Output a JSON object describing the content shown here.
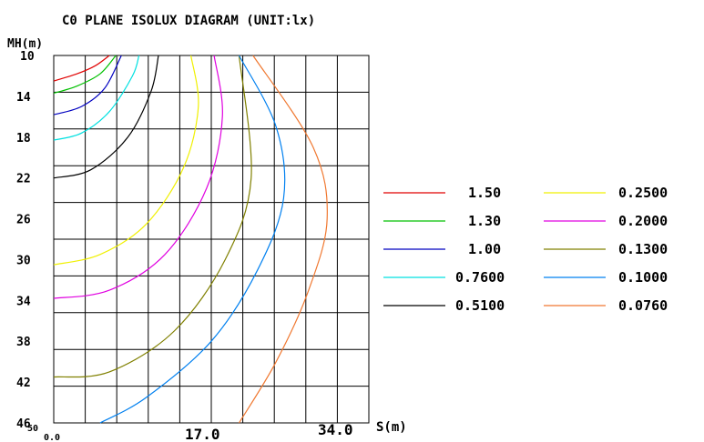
{
  "chart_data": {
    "type": "line",
    "title": "C0 PLANE ISOLUX DIAGRAM (UNIT:lx)",
    "ylabel": "MH(m)",
    "xlabel": "S(m)",
    "xlim": [
      0,
      34.0
    ],
    "ylim": [
      10,
      46
    ],
    "y_inverted": true,
    "grid": true,
    "x_ticks": [
      "0.0",
      "17.0",
      "34.0"
    ],
    "y_ticks": [
      "10",
      "14",
      "18",
      "22",
      "26",
      "30",
      "34",
      "38",
      "42",
      "46"
    ],
    "y_bottom_extra": "50",
    "legend_position": "right",
    "series": [
      {
        "name": "1.50",
        "color": "#e00000",
        "x": [
          0,
          2.5,
          4.5,
          6.0
        ],
        "y": [
          12.5,
          11.8,
          11.0,
          10.0
        ]
      },
      {
        "name": "1.30",
        "color": "#00c000",
        "x": [
          0,
          2.5,
          5.0,
          6.7
        ],
        "y": [
          13.7,
          13.0,
          11.8,
          10.0
        ]
      },
      {
        "name": "1.00",
        "color": "#0000c0",
        "x": [
          0,
          3.0,
          5.5,
          7.3
        ],
        "y": [
          15.8,
          15.0,
          13.2,
          10.0
        ]
      },
      {
        "name": "0.7600",
        "color": "#00e0e0",
        "x": [
          0,
          3.0,
          6.0,
          8.5,
          9.2
        ],
        "y": [
          18.3,
          17.6,
          15.5,
          12.0,
          10.0
        ]
      },
      {
        "name": "0.5100",
        "color": "#000000",
        "x": [
          0,
          4.0,
          8.0,
          10.5,
          11.3
        ],
        "y": [
          22.0,
          21.2,
          18.0,
          13.5,
          10.0
        ]
      },
      {
        "name": "0.2500",
        "color": "#f0f000",
        "x": [
          0,
          5.0,
          10.0,
          14.0,
          15.6,
          14.8
        ],
        "y": [
          30.5,
          29.5,
          26.5,
          21.0,
          15.0,
          10.0
        ]
      },
      {
        "name": "0.2000",
        "color": "#e000e0",
        "x": [
          0,
          6.0,
          12.0,
          16.5,
          18.2,
          17.3
        ],
        "y": [
          33.8,
          33.0,
          29.5,
          23.0,
          16.0,
          10.0
        ]
      },
      {
        "name": "0.1300",
        "color": "#808000",
        "x": [
          0,
          6.0,
          13.0,
          18.5,
          21.3,
          20.0
        ],
        "y": [
          41.5,
          41.0,
          37.0,
          30.0,
          22.0,
          10.0
        ]
      },
      {
        "name": "0.1000",
        "color": "#0080f0",
        "x": [
          5.0,
          10.0,
          17.0,
          22.0,
          24.8,
          24.0,
          20.0
        ],
        "y": [
          46.0,
          43.5,
          38.0,
          31.0,
          24.0,
          17.0,
          10.0
        ]
      },
      {
        "name": "0.0760",
        "color": "#f07830",
        "x": [
          20.0,
          24.0,
          27.5,
          29.5,
          28.0,
          21.5
        ],
        "y": [
          46.0,
          40.0,
          33.0,
          26.0,
          19.0,
          10.0
        ]
      }
    ]
  }
}
